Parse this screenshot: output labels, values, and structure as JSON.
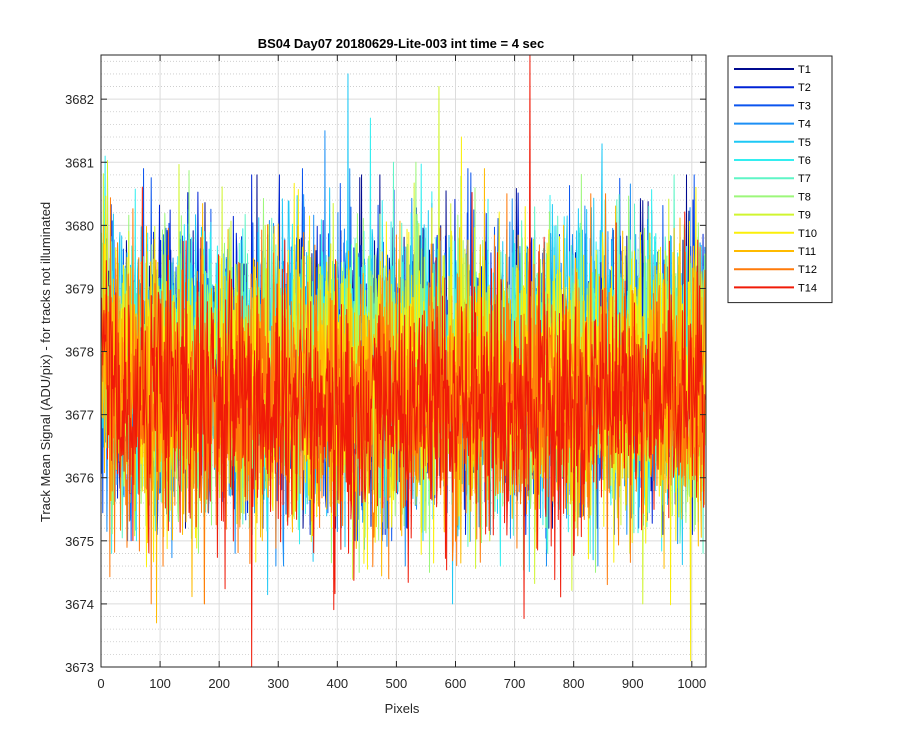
{
  "chart_data": {
    "type": "line",
    "title": "BS04 Day07 20180629-Lite-003 int time = 4 sec",
    "xlabel": "Pixels",
    "ylabel": "Track Mean Signal (ADU/pix) - for tracks not illuminated",
    "xlim": [
      0,
      1024
    ],
    "ylim": [
      3673,
      3682.7
    ],
    "xticks": [
      "0",
      "100",
      "200",
      "300",
      "400",
      "500",
      "600",
      "700",
      "800",
      "900",
      "1000"
    ],
    "yticks": [
      "3673",
      "3674",
      "3675",
      "3676",
      "3677",
      "3678",
      "3679",
      "3680",
      "3681",
      "3682"
    ],
    "grid": true,
    "minor_grid": true,
    "legend_position": "outside-top-right",
    "series": [
      {
        "name": "T1",
        "color": "#000a8f",
        "mean": 3677.8,
        "std": 1.05,
        "min": 3675.2,
        "max": 3680.8
      },
      {
        "name": "T2",
        "color": "#0023d6",
        "mean": 3677.8,
        "std": 1.05,
        "min": 3675.1,
        "max": 3680.8
      },
      {
        "name": "T3",
        "color": "#0b55ef",
        "mean": 3677.7,
        "std": 1.05,
        "min": 3675.0,
        "max": 3680.9
      },
      {
        "name": "T4",
        "color": "#1c8ff5",
        "mean": 3677.7,
        "std": 1.1,
        "min": 3674.6,
        "max": 3681.5
      },
      {
        "name": "T5",
        "color": "#1ec8f5",
        "mean": 3677.8,
        "std": 1.15,
        "min": 3674.0,
        "max": 3682.4
      },
      {
        "name": "T6",
        "color": "#33eef0",
        "mean": 3677.8,
        "std": 1.1,
        "min": 3674.6,
        "max": 3681.7
      },
      {
        "name": "T7",
        "color": "#5ff5c6",
        "mean": 3677.7,
        "std": 1.05,
        "min": 3674.8,
        "max": 3681.0
      },
      {
        "name": "T8",
        "color": "#9cf77a",
        "mean": 3677.6,
        "std": 1.05,
        "min": 3674.5,
        "max": 3681.0
      },
      {
        "name": "T9",
        "color": "#d0f530",
        "mean": 3677.6,
        "std": 1.1,
        "min": 3674.0,
        "max": 3682.2
      },
      {
        "name": "T10",
        "color": "#fbef0a",
        "mean": 3677.5,
        "std": 1.1,
        "min": 3673.1,
        "max": 3681.4
      },
      {
        "name": "T11",
        "color": "#ffbb00",
        "mean": 3677.4,
        "std": 1.05,
        "min": 3673.7,
        "max": 3680.9
      },
      {
        "name": "T12",
        "color": "#ff7a0a",
        "mean": 3677.3,
        "std": 1.05,
        "min": 3674.0,
        "max": 3680.5
      },
      {
        "name": "T14",
        "color": "#f01a08",
        "mean": 3677.2,
        "std": 1.0,
        "min": 3673.0,
        "max": 3682.7
      }
    ]
  }
}
